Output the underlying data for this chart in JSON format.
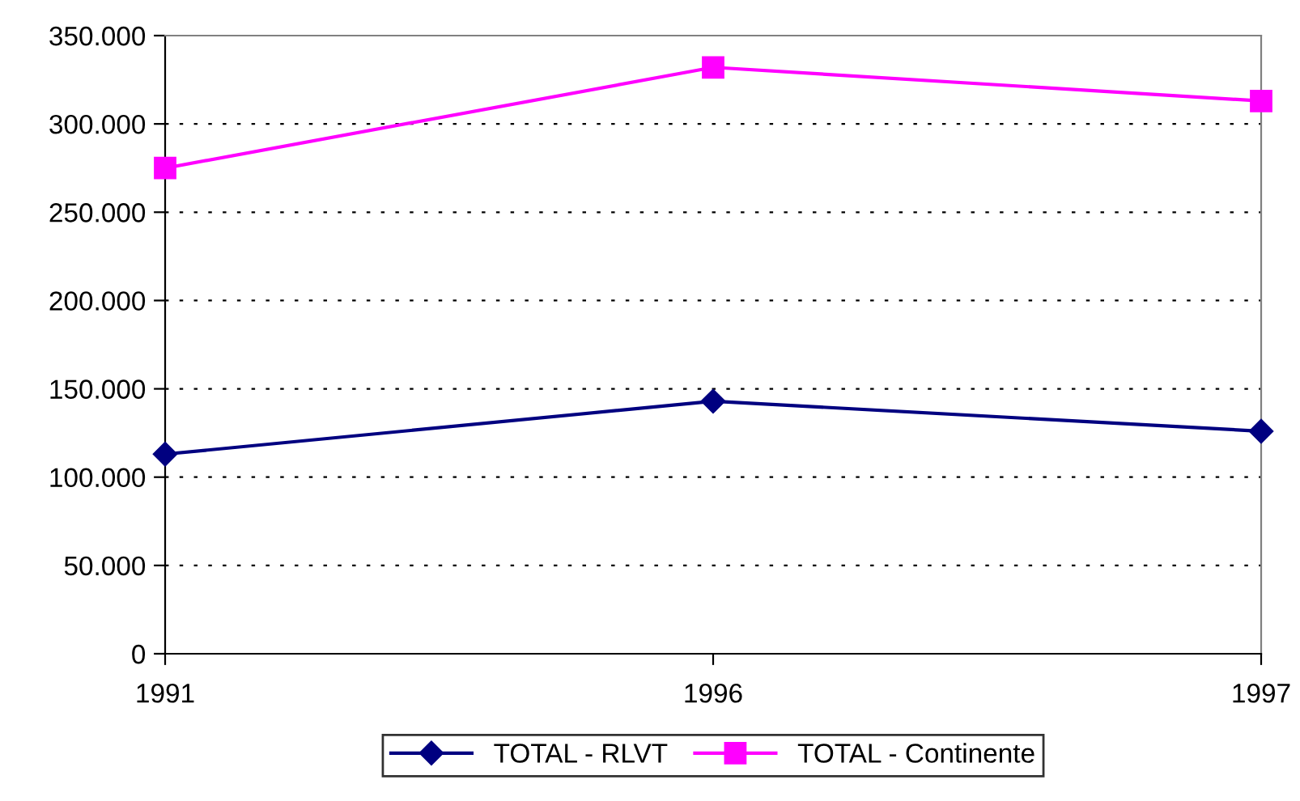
{
  "chart_data": {
    "type": "line",
    "categories": [
      "1991",
      "1996",
      "1997"
    ],
    "series": [
      {
        "name": "TOTAL - RLVT",
        "color": "#000080",
        "marker": "diamond",
        "values": [
          113000,
          143000,
          126000
        ]
      },
      {
        "name": "TOTAL - Continente",
        "color": "#ff00ff",
        "marker": "square",
        "values": [
          275000,
          332000,
          313000
        ]
      }
    ],
    "ylim": [
      0,
      350000
    ],
    "yticks": [
      0,
      {
        "value": 50000,
        "label": "50.000"
      },
      {
        "value": 100000,
        "label": "100.000"
      },
      {
        "value": 150000,
        "label": "150.000"
      },
      {
        "value": 200000,
        "label": "200.000"
      },
      {
        "value": 250000,
        "label": "250.000"
      },
      {
        "value": 300000,
        "label": "300.000"
      },
      {
        "value": 350000,
        "label": "350.000"
      }
    ],
    "grid": "y",
    "legend": "bottom",
    "line_style": "solid"
  }
}
